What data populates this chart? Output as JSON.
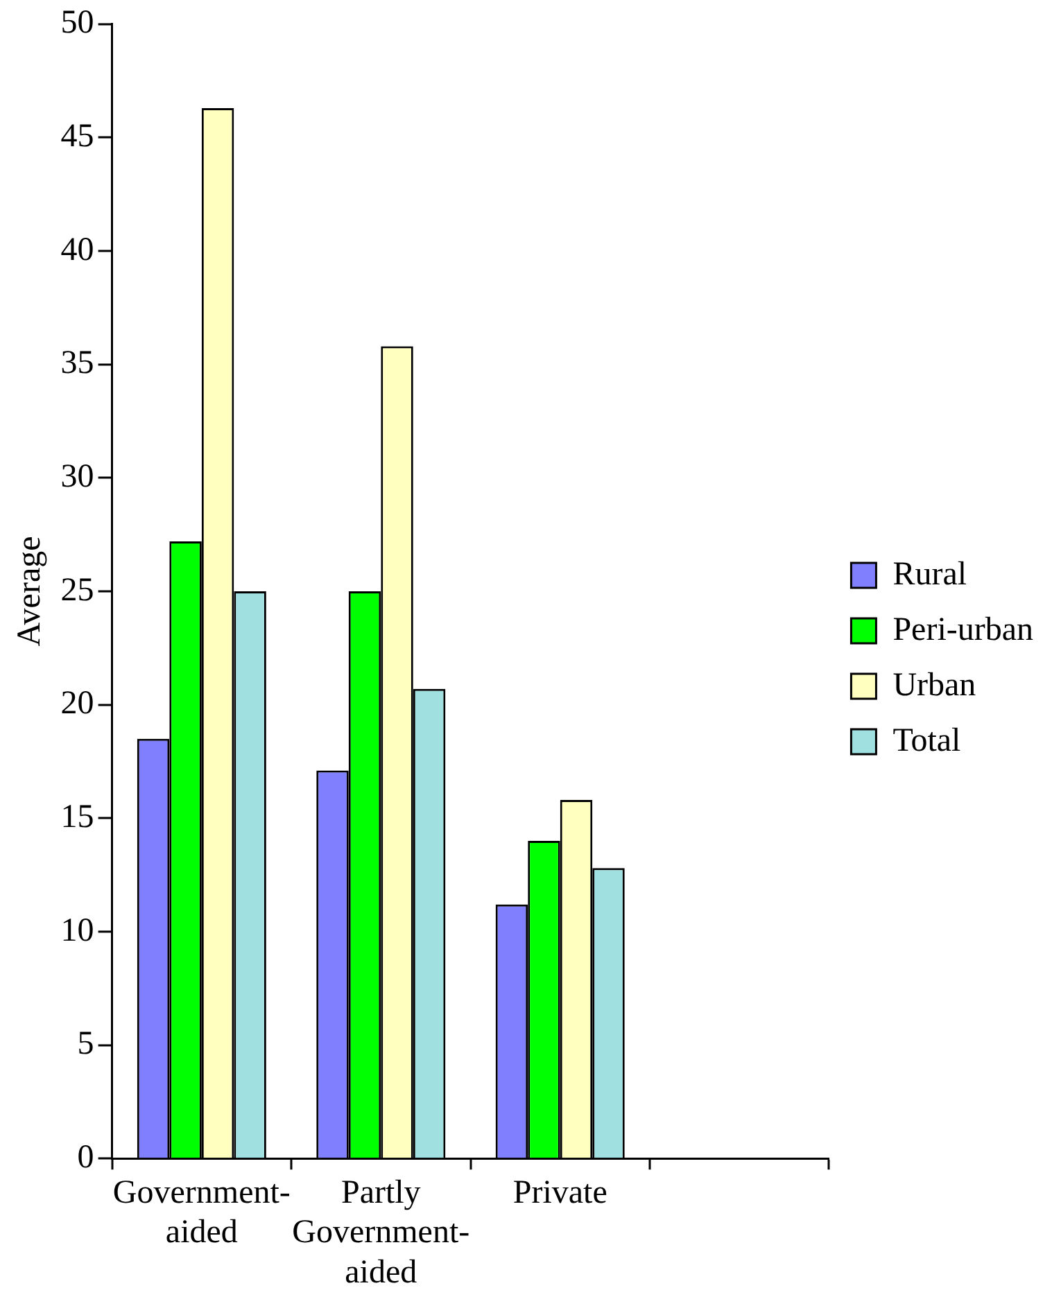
{
  "chart_data": {
    "type": "bar",
    "ylabel": "Average",
    "categories": [
      "Government-aided",
      "Partly Government-aided",
      "Private",
      null
    ],
    "series": [
      {
        "name": "Rural",
        "color": "#8080ff",
        "values": [
          18.5,
          17.1,
          11.2,
          null
        ]
      },
      {
        "name": "Peri-urban",
        "color": "#00ff00",
        "values": [
          27.2,
          25,
          14.0,
          null
        ]
      },
      {
        "name": "Urban",
        "color": "#ffffc0",
        "values": [
          46.3,
          35.8,
          15.8,
          null
        ]
      },
      {
        "name": "Total",
        "color": "#a0e0e0",
        "values": [
          25,
          20.7,
          12.8,
          null
        ]
      }
    ],
    "ylim": [
      0,
      50
    ],
    "yticks": [
      0,
      5,
      10,
      15,
      20,
      25,
      30,
      35,
      40,
      45,
      50
    ],
    "grid": false,
    "legend": "right"
  }
}
